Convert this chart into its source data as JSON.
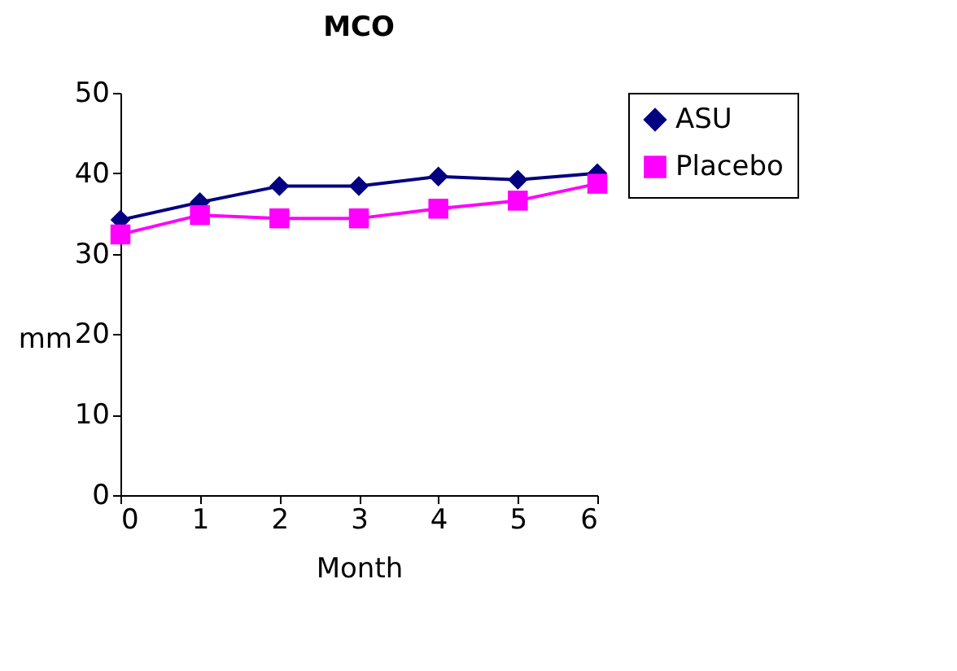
{
  "chart_data": {
    "type": "line",
    "title": "MCO",
    "xlabel": "Month",
    "ylabel": "mm",
    "x": [
      0,
      1,
      2,
      3,
      4,
      5,
      6
    ],
    "xlim": [
      0,
      6
    ],
    "xticks": [
      0,
      1,
      2,
      3,
      4,
      5,
      6
    ],
    "ylim": [
      0,
      50
    ],
    "yticks": [
      0,
      10,
      20,
      30,
      40,
      50
    ],
    "grid": false,
    "legend": "right",
    "series": [
      {
        "name": "ASU",
        "color": "#000080",
        "marker": "diamond",
        "values": [
          34.2,
          36.4,
          38.4,
          38.4,
          39.6,
          39.2,
          40.0
        ]
      },
      {
        "name": "Placebo",
        "color": "#ff00ff",
        "marker": "square",
        "values": [
          32.4,
          34.8,
          34.4,
          34.4,
          35.6,
          36.6,
          38.7
        ]
      }
    ]
  }
}
